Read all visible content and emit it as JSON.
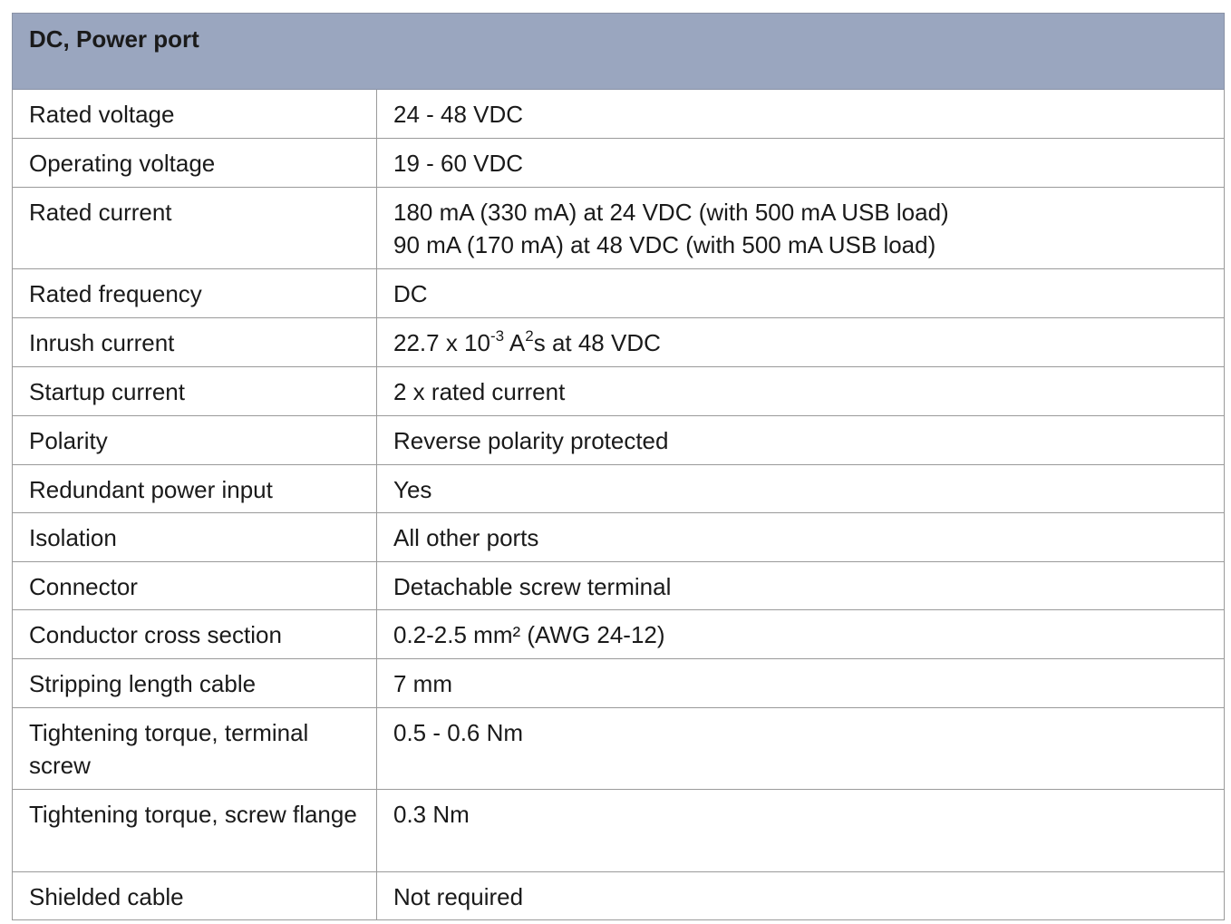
{
  "table": {
    "title": "DC, Power port",
    "header_color": "#9aa6bf",
    "rows": [
      {
        "label": "Rated voltage",
        "value": "24 - 48 VDC"
      },
      {
        "label": "Operating voltage",
        "value": "19 - 60 VDC"
      },
      {
        "label": "Rated current",
        "value": "180 mA (330 mA) at 24 VDC (with 500 mA USB load)",
        "value2": "90 mA (170 mA) at 48 VDC (with 500 mA USB load)"
      },
      {
        "label": "Rated frequency",
        "value": "DC"
      },
      {
        "label": "Inrush current",
        "value_parts": {
          "a": "22.7 x 10",
          "exp1": "-3",
          "b": " A",
          "exp2": "2",
          "c": "s at 48 VDC"
        }
      },
      {
        "label": "Startup current",
        "value": "2 x rated current"
      },
      {
        "label": "Polarity",
        "value": "Reverse polarity protected"
      },
      {
        "label": "Redundant power input",
        "value": "Yes"
      },
      {
        "label": "Isolation",
        "value": "All other ports"
      },
      {
        "label": "Connector",
        "value": "Detachable screw terminal"
      },
      {
        "label": "Conductor cross section",
        "value": "0.2-2.5 mm² (AWG 24-12)"
      },
      {
        "label": "Stripping length cable",
        "value": "7 mm"
      },
      {
        "label": "Tightening torque, terminal screw",
        "value": "0.5 - 0.6 Nm"
      },
      {
        "label": "Tightening torque, screw flange",
        "value": "0.3 Nm"
      },
      {
        "label": "Shielded cable",
        "value": "Not required"
      }
    ]
  }
}
